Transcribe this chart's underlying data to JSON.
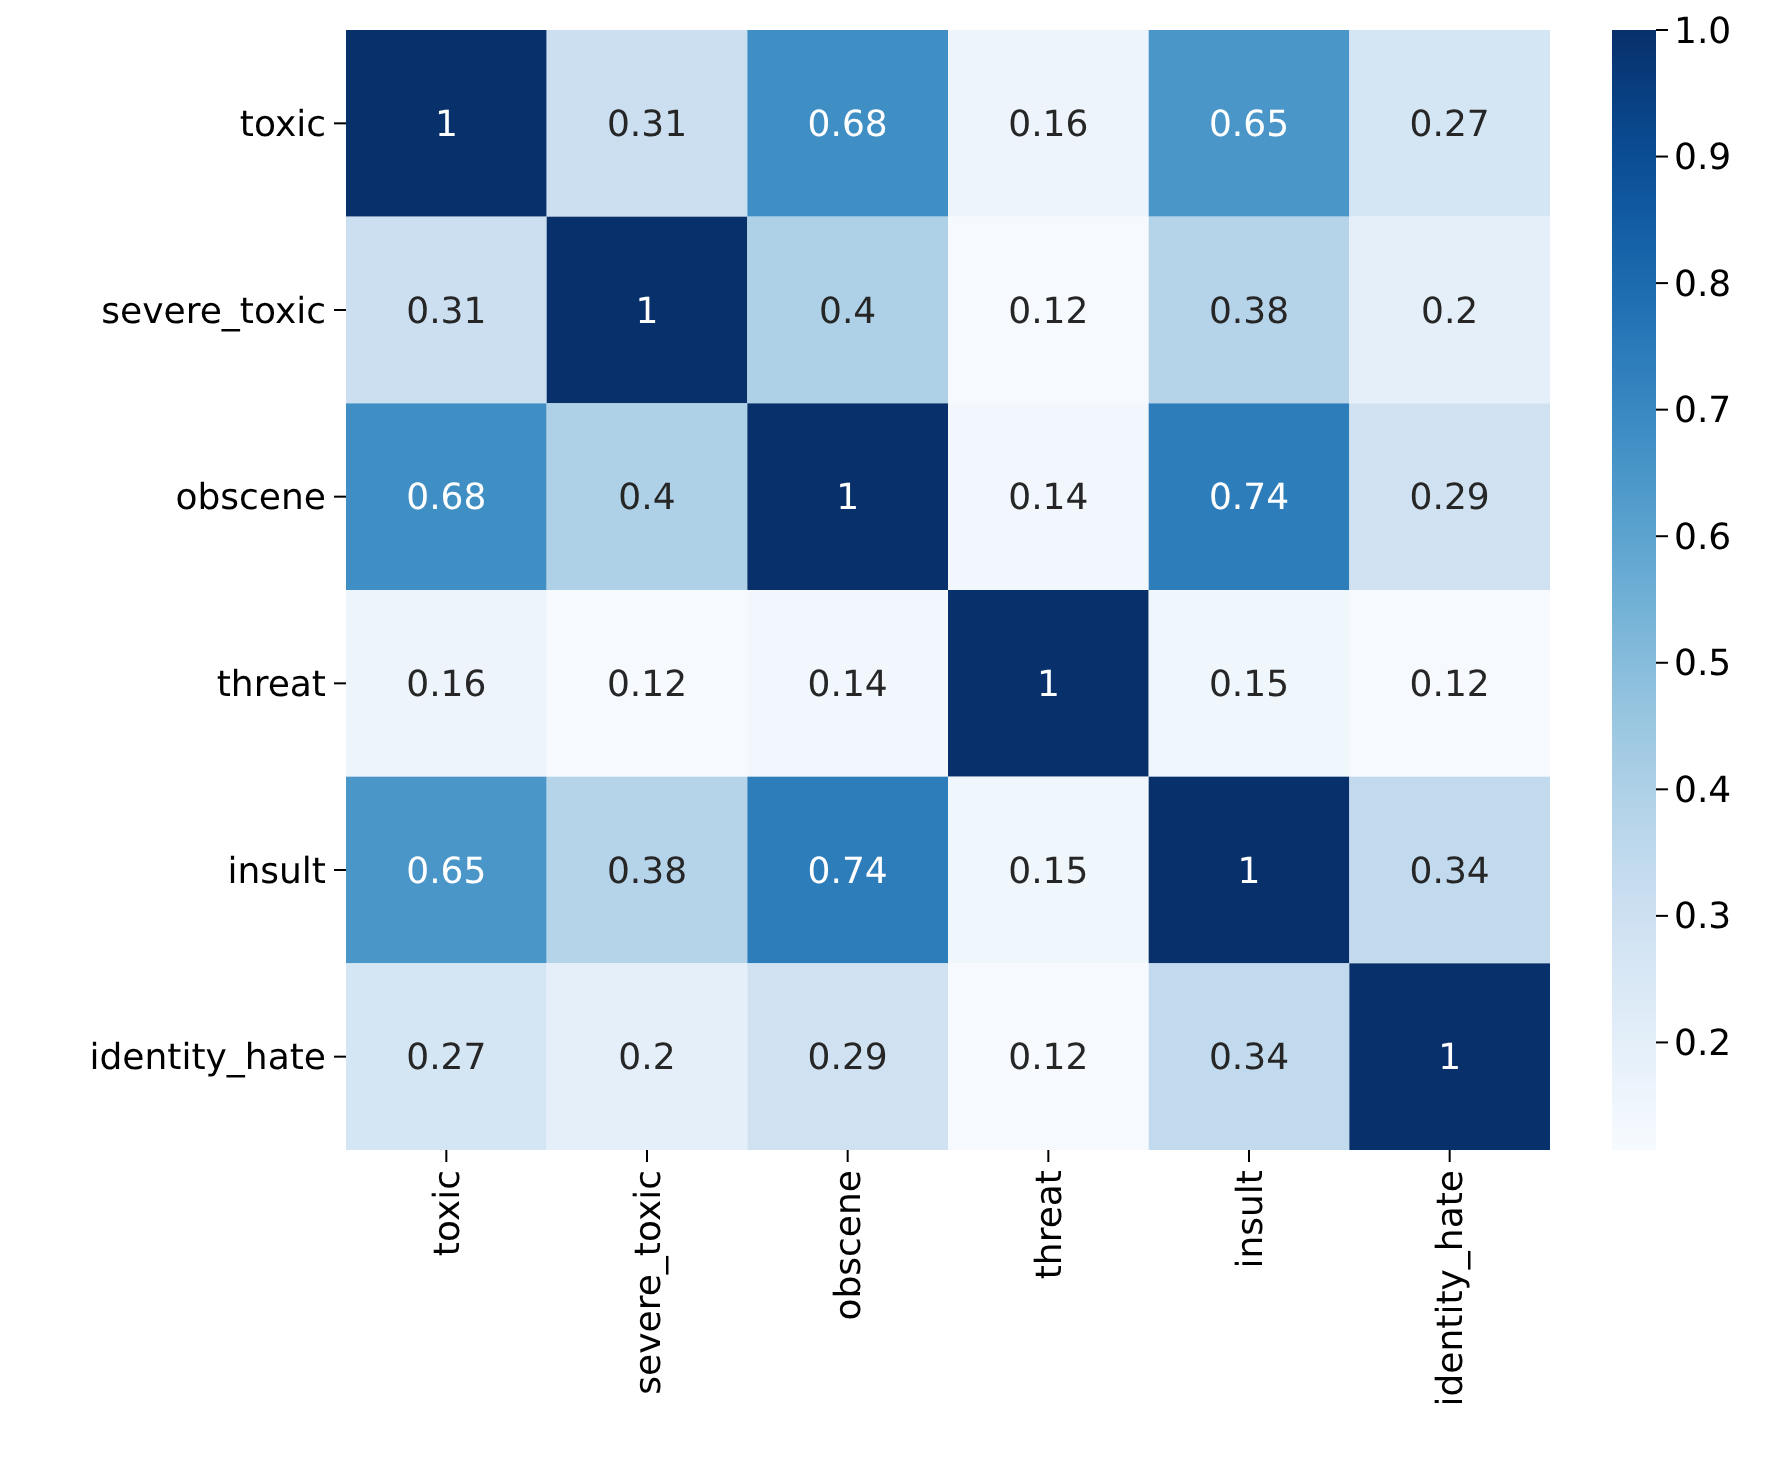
{
  "chart_data": {
    "type": "heatmap",
    "categories": [
      "toxic",
      "severe_toxic",
      "obscene",
      "threat",
      "insult",
      "identity_hate"
    ],
    "y_categories": [
      "toxic",
      "severe_toxic",
      "obscene",
      "threat",
      "insult",
      "identity_hate"
    ],
    "cells": [
      [
        1,
        0.31,
        0.68,
        0.16,
        0.65,
        0.27
      ],
      [
        0.31,
        1,
        0.4,
        0.12,
        0.38,
        0.2
      ],
      [
        0.68,
        0.4,
        1,
        0.14,
        0.74,
        0.29
      ],
      [
        0.16,
        0.12,
        0.14,
        1,
        0.15,
        0.12
      ],
      [
        0.65,
        0.38,
        0.74,
        0.15,
        1,
        0.34
      ],
      [
        0.27,
        0.2,
        0.29,
        0.12,
        0.34,
        1
      ]
    ],
    "clim": [
      0.115,
      1
    ],
    "cticks": [
      {
        "value": 0.2,
        "label": "0.2"
      },
      {
        "value": 0.3,
        "label": "0.3"
      },
      {
        "value": 0.4,
        "label": "0.4"
      },
      {
        "value": 0.5,
        "label": "0.5"
      },
      {
        "value": 0.6,
        "label": "0.6"
      },
      {
        "value": 0.7,
        "label": "0.7"
      },
      {
        "value": 0.8,
        "label": "0.8"
      },
      {
        "value": 0.9,
        "label": "0.9"
      },
      {
        "value": 1,
        "label": "1.0"
      }
    ],
    "data_labels": true
  }
}
